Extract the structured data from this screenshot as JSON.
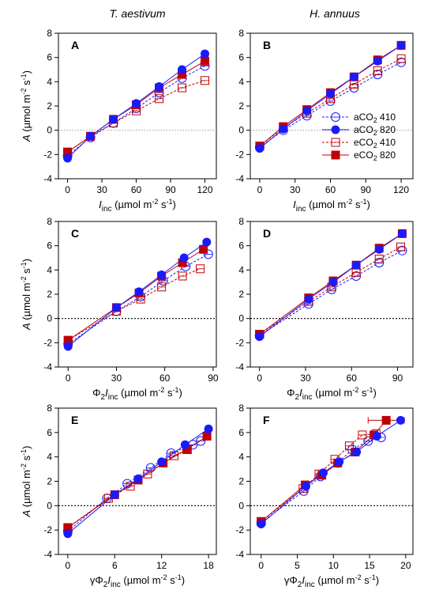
{
  "column_titles": [
    "T. aestivum",
    "H. annuus"
  ],
  "colors": {
    "blue": "#1a1aff",
    "red": "#c00000"
  },
  "legend": {
    "items": [
      {
        "series": "aCO2_410",
        "label": "aCO",
        "sub": "2",
        "rest": " 410"
      },
      {
        "series": "aCO2_820",
        "label": "aCO",
        "sub": "2",
        "rest": " 820"
      },
      {
        "series": "eCO2_410",
        "label": "eCO",
        "sub": "2",
        "rest": " 410"
      },
      {
        "series": "eCO2_820",
        "label": "eCO",
        "sub": "2",
        "rest": " 820"
      }
    ]
  },
  "series_styles": {
    "aCO2_410": {
      "color": "#1a1aff",
      "marker": "circle",
      "filled": false,
      "dashed": true
    },
    "aCO2_820": {
      "color": "#1a1aff",
      "marker": "circle",
      "filled": true,
      "dashed": false
    },
    "eCO2_410": {
      "color": "#c00000",
      "marker": "square",
      "filled": false,
      "dashed": true
    },
    "eCO2_820": {
      "color": "#c00000",
      "marker": "square",
      "filled": true,
      "dashed": false
    }
  },
  "axis_labels": {
    "y": {
      "pre": "A",
      "rest": " (µmol m",
      "sup1": "-2",
      "mid": " s",
      "sup2": "-1",
      "end": ")"
    },
    "x_iinc": {
      "pre": "I",
      "sub": "inc",
      "rest": " (µmol m",
      "sup1": "-2",
      "mid": " s",
      "sup2": "-1",
      "end": ")"
    },
    "x_phi": {
      "pre0": "Φ",
      "sub0": "2",
      "pre": "I",
      "sub": "inc",
      "rest": " (µmol m",
      "sup1": "-2",
      "mid": " s",
      "sup2": "-1",
      "end": ")"
    },
    "x_gphi": {
      "pre00": "γ",
      "pre0": "Φ",
      "sub0": "2",
      "pre": "I",
      "sub": "inc",
      "rest": " (µmol m",
      "sup1": "-2",
      "mid": " s",
      "sup2": "-1",
      "end": ")"
    }
  },
  "chart_data": [
    {
      "panel": "A",
      "type": "scatter",
      "xlabel_key": "x_iinc",
      "xlim": [
        -8,
        130
      ],
      "xticks": [
        0,
        30,
        60,
        90,
        120
      ],
      "ylim": [
        -4,
        8
      ],
      "yticks": [
        -4,
        -2,
        0,
        2,
        4,
        6,
        8
      ],
      "zero_line": "dotted-fine",
      "series": [
        {
          "id": "aCO2_410",
          "x": [
            0,
            20,
            40,
            60,
            80,
            100,
            120
          ],
          "y": [
            -2.1,
            -0.6,
            0.6,
            1.8,
            3.1,
            4.3,
            5.3
          ]
        },
        {
          "id": "aCO2_820",
          "x": [
            0,
            20,
            40,
            60,
            80,
            100,
            120
          ],
          "y": [
            -2.3,
            -0.5,
            0.9,
            2.2,
            3.6,
            5.0,
            6.3
          ]
        },
        {
          "id": "eCO2_410",
          "x": [
            0,
            20,
            40,
            60,
            80,
            100,
            120
          ],
          "y": [
            -1.8,
            -0.5,
            0.6,
            1.6,
            2.6,
            3.5,
            4.1
          ]
        },
        {
          "id": "eCO2_820",
          "x": [
            0,
            20,
            40,
            60,
            80,
            100,
            120
          ],
          "y": [
            -1.8,
            -0.5,
            0.9,
            2.1,
            3.5,
            4.6,
            5.7
          ]
        }
      ]
    },
    {
      "panel": "B",
      "type": "scatter",
      "xlabel_key": "x_iinc",
      "xlim": [
        -8,
        130
      ],
      "xticks": [
        0,
        30,
        60,
        90,
        120
      ],
      "ylim": [
        -4,
        8
      ],
      "yticks": [
        -4,
        -2,
        0,
        2,
        4,
        6,
        8
      ],
      "zero_line": "dotted-fine",
      "series": [
        {
          "id": "aCO2_410",
          "x": [
            0,
            20,
            40,
            60,
            80,
            100,
            120
          ],
          "y": [
            -1.4,
            0.0,
            1.2,
            2.4,
            3.5,
            4.6,
            5.6
          ]
        },
        {
          "id": "aCO2_820",
          "x": [
            0,
            20,
            40,
            60,
            80,
            100,
            120
          ],
          "y": [
            -1.5,
            0.1,
            1.6,
            3.0,
            4.4,
            5.7,
            7.0
          ]
        },
        {
          "id": "eCO2_410",
          "x": [
            0,
            20,
            40,
            60,
            80,
            100,
            120
          ],
          "y": [
            -1.3,
            0.2,
            1.4,
            2.6,
            3.8,
            4.9,
            5.9
          ]
        },
        {
          "id": "eCO2_820",
          "x": [
            0,
            20,
            40,
            60,
            80,
            100,
            120
          ],
          "y": [
            -1.3,
            0.3,
            1.7,
            3.1,
            4.4,
            5.8,
            7.0
          ]
        }
      ],
      "has_legend": true
    },
    {
      "panel": "C",
      "type": "scatter",
      "xlabel_key": "x_phi",
      "xlim": [
        -6,
        92
      ],
      "xticks": [
        0,
        30,
        60,
        90
      ],
      "ylim": [
        -4,
        8
      ],
      "yticks": [
        -4,
        -2,
        0,
        2,
        4,
        6,
        8
      ],
      "zero_line": "dotted",
      "series": [
        {
          "id": "aCO2_410",
          "x": [
            0,
            30,
            45,
            59,
            73,
            87
          ],
          "y": [
            -2.1,
            0.6,
            1.8,
            3.1,
            4.3,
            5.3
          ]
        },
        {
          "id": "aCO2_820",
          "x": [
            0,
            30,
            44,
            58,
            72,
            86
          ],
          "y": [
            -2.3,
            0.9,
            2.2,
            3.6,
            5.0,
            6.3
          ]
        },
        {
          "id": "eCO2_410",
          "x": [
            0,
            30,
            45,
            58,
            71,
            82
          ],
          "y": [
            -1.8,
            0.6,
            1.6,
            2.6,
            3.5,
            4.1
          ]
        },
        {
          "id": "eCO2_820",
          "x": [
            0,
            30,
            44,
            58,
            71,
            84
          ],
          "y": [
            -1.8,
            0.9,
            2.1,
            3.5,
            4.6,
            5.7
          ]
        }
      ]
    },
    {
      "panel": "D",
      "type": "scatter",
      "xlabel_key": "x_phi",
      "xlim": [
        -6,
        100
      ],
      "xticks": [
        0,
        30,
        60,
        90
      ],
      "ylim": [
        -4,
        8
      ],
      "yticks": [
        -4,
        -2,
        0,
        2,
        4,
        6,
        8
      ],
      "zero_line": "dotted",
      "series": [
        {
          "id": "aCO2_410",
          "x": [
            0,
            32,
            47,
            63,
            78,
            93
          ],
          "y": [
            -1.4,
            1.2,
            2.4,
            3.5,
            4.6,
            5.6
          ]
        },
        {
          "id": "aCO2_820",
          "x": [
            0,
            32,
            48,
            63,
            78,
            93
          ],
          "y": [
            -1.5,
            1.6,
            3.0,
            4.4,
            5.7,
            7.0
          ]
        },
        {
          "id": "eCO2_410",
          "x": [
            0,
            32,
            47,
            63,
            78,
            92
          ],
          "y": [
            -1.3,
            1.4,
            2.6,
            3.8,
            4.9,
            5.9
          ]
        },
        {
          "id": "eCO2_820",
          "x": [
            0,
            32,
            48,
            63,
            78,
            93
          ],
          "y": [
            -1.3,
            1.7,
            3.1,
            4.4,
            5.8,
            7.0
          ]
        }
      ]
    },
    {
      "panel": "E",
      "type": "scatter",
      "xlabel_key": "x_gphi",
      "xlim": [
        -1.2,
        19
      ],
      "xticks": [
        0,
        6,
        12,
        18
      ],
      "ylim": [
        -4,
        8
      ],
      "yticks": [
        -4,
        -2,
        0,
        2,
        4,
        6,
        8
      ],
      "zero_line": "dotted",
      "series": [
        {
          "id": "aCO2_410",
          "x": [
            0,
            5.0,
            7.6,
            10.6,
            13.2,
            16.0,
            17.0
          ],
          "y": [
            -2.1,
            0.6,
            1.8,
            3.1,
            4.3,
            5.0,
            5.3
          ]
        },
        {
          "id": "aCO2_820",
          "x": [
            0,
            6.0,
            9.0,
            12.0,
            15.0,
            18.0
          ],
          "y": [
            -2.3,
            0.9,
            2.2,
            3.6,
            5.0,
            6.3
          ]
        },
        {
          "id": "eCO2_410",
          "x": [
            0,
            5.2,
            8.0,
            10.2,
            13.6,
            15.3
          ],
          "y": [
            -1.8,
            0.6,
            1.6,
            2.6,
            4.1,
            4.6
          ]
        },
        {
          "id": "eCO2_820",
          "x": [
            0,
            6.0,
            9.0,
            12.2,
            15.2,
            17.8
          ],
          "y": [
            -1.8,
            0.9,
            2.1,
            3.5,
            4.6,
            5.7
          ]
        }
      ]
    },
    {
      "panel": "F",
      "type": "scatter",
      "xlabel_key": "x_gphi",
      "xlim": [
        -1.5,
        21
      ],
      "xticks": [
        0,
        5,
        10,
        15,
        20
      ],
      "ylim": [
        -4,
        8
      ],
      "yticks": [
        -4,
        -2,
        0,
        2,
        4,
        6,
        8
      ],
      "zero_line": "dotted",
      "series": [
        {
          "id": "aCO2_410",
          "x": [
            0,
            5.9,
            8.2,
            10.6,
            12.6,
            14.8,
            16.6
          ],
          "y": [
            -1.4,
            1.2,
            2.4,
            3.5,
            4.6,
            5.3,
            5.6
          ]
        },
        {
          "id": "aCO2_820",
          "x": [
            0,
            6.2,
            8.6,
            10.8,
            13.2,
            16.0,
            19.3
          ],
          "y": [
            -1.5,
            1.6,
            2.7,
            3.6,
            4.4,
            5.7,
            7.0
          ]
        },
        {
          "id": "eCO2_410",
          "x": [
            0,
            5.8,
            8.0,
            10.2,
            12.2,
            14.0,
            15.9
          ],
          "y": [
            -1.3,
            1.4,
            2.6,
            3.8,
            4.9,
            5.8,
            5.9
          ]
        },
        {
          "id": "eCO2_820",
          "x": [
            0,
            6.1,
            8.4,
            10.6,
            13.0,
            15.6,
            17.3
          ],
          "y": [
            -1.3,
            1.7,
            2.5,
            3.5,
            4.4,
            5.8,
            7.0
          ],
          "xerr_last": [
            2.5,
            2.5
          ]
        }
      ]
    }
  ]
}
